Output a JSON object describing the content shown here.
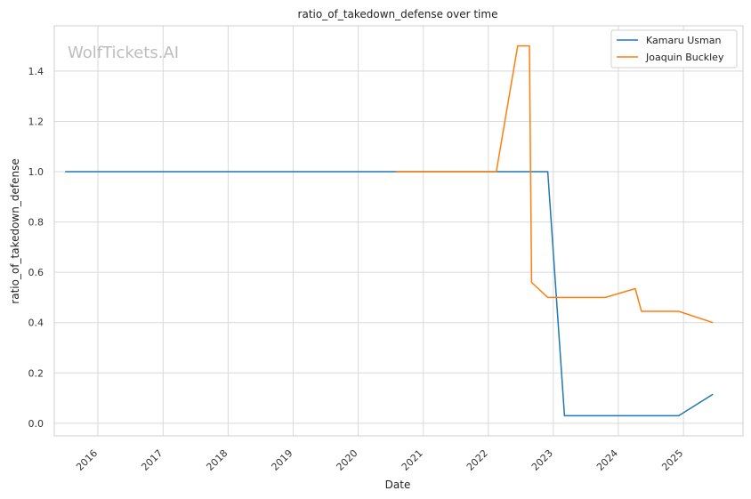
{
  "chart_data": {
    "type": "line",
    "title": "ratio_of_takedown_defense over time",
    "xlabel": "Date",
    "ylabel": "ratio_of_takedown_defense",
    "watermark": "WolfTickets.AI",
    "x_ticks": [
      "2016",
      "2017",
      "2018",
      "2019",
      "2020",
      "2021",
      "2022",
      "2023",
      "2024",
      "2025"
    ],
    "y_ticks": [
      "0.0",
      "0.2",
      "0.4",
      "0.6",
      "0.8",
      "1.0",
      "1.2",
      "1.4"
    ],
    "xlim": [
      "2015-05-01",
      "2025-12-01"
    ],
    "ylim": [
      -0.05,
      1.58
    ],
    "grid": true,
    "legend_position": "top-right",
    "series": [
      {
        "name": "Kamaru Usman",
        "color": "#1f77b4",
        "points": [
          [
            "2015-07-01",
            1.0
          ],
          [
            "2022-12-01",
            1.0
          ],
          [
            "2023-03-05",
            0.03
          ],
          [
            "2023-10-20",
            0.03
          ],
          [
            "2024-12-05",
            0.03
          ],
          [
            "2025-06-15",
            0.115
          ]
        ]
      },
      {
        "name": "Joaquin Buckley",
        "color": "#ff7f0e",
        "points": [
          [
            "2020-08-01",
            1.0
          ],
          [
            "2022-02-15",
            1.0
          ],
          [
            "2022-06-15",
            1.5
          ],
          [
            "2022-08-20",
            1.5
          ],
          [
            "2022-09-01",
            0.56
          ],
          [
            "2022-12-01",
            0.5
          ],
          [
            "2023-10-20",
            0.5
          ],
          [
            "2024-04-05",
            0.535
          ],
          [
            "2024-05-10",
            0.445
          ],
          [
            "2024-12-05",
            0.445
          ],
          [
            "2025-06-15",
            0.4
          ]
        ]
      }
    ]
  }
}
